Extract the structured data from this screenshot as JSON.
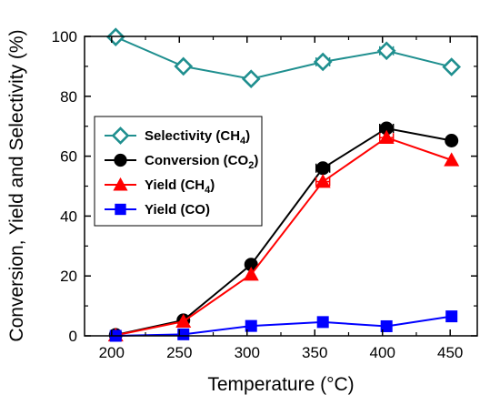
{
  "chart_data": {
    "type": "line",
    "xlabel": "Temperature (°C)",
    "ylabel": "Conversion, Yield and Selectivity (%)",
    "xlim": [
      180,
      470
    ],
    "ylim": [
      0,
      100
    ],
    "xticks": [
      200,
      250,
      300,
      350,
      400,
      450
    ],
    "yticks": [
      0,
      20,
      40,
      60,
      80,
      100
    ],
    "grid": false,
    "legend_position": "center-left",
    "series": [
      {
        "key": "selectivity-ch4",
        "name": "Selectivity (CH",
        "name_sub": "4",
        "name_tail": ")",
        "color": "#1f8f8f",
        "marker": "open-diamond",
        "x": [
          203,
          253,
          303,
          356,
          403,
          451
        ],
        "y": [
          99.8,
          90.0,
          85.8,
          91.5,
          95.2,
          89.8
        ],
        "xerr": [
          0,
          0,
          0,
          5,
          5,
          0
        ]
      },
      {
        "key": "conversion-co2",
        "name": "Conversion (CO",
        "name_sub": "2",
        "name_tail": ")",
        "color": "#000000",
        "marker": "filled-circle",
        "x": [
          203,
          253,
          303,
          356,
          403,
          451
        ],
        "y": [
          0.3,
          5.2,
          23.8,
          56.0,
          69.3,
          65.2
        ],
        "xerr": [
          0,
          0,
          0,
          5,
          5,
          0
        ]
      },
      {
        "key": "yield-ch4",
        "name": "Yield (CH",
        "name_sub": "4",
        "name_tail": ")",
        "color": "#ff0000",
        "marker": "filled-triangle",
        "x": [
          203,
          253,
          303,
          356,
          403,
          451
        ],
        "y": [
          0.2,
          4.8,
          20.5,
          51.5,
          66.2,
          58.7
        ],
        "xerr": [
          0,
          0,
          0,
          5,
          5,
          0
        ]
      },
      {
        "key": "yield-co",
        "name": "Yield (CO)",
        "name_sub": "",
        "name_tail": "",
        "color": "#0000ff",
        "marker": "filled-square",
        "x": [
          203,
          253,
          303,
          356,
          403,
          451
        ],
        "y": [
          0.0,
          0.5,
          3.3,
          4.6,
          3.2,
          6.5
        ],
        "xerr": [
          0,
          0,
          0,
          0,
          0,
          0
        ]
      }
    ]
  }
}
